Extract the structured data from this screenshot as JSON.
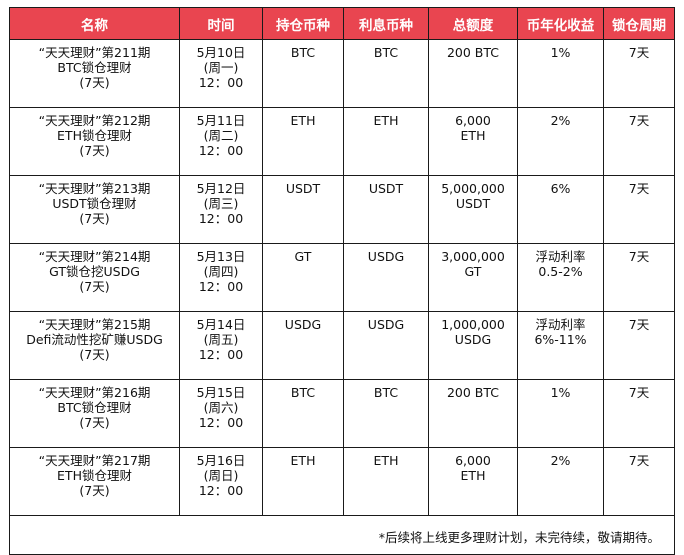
{
  "headers": [
    "名称",
    "时间",
    "持仓币种",
    "利息币种",
    "总额度",
    "币年化收益",
    "锁仓周期"
  ],
  "rows": [
    {
      "name": [
        "“天天理财”第211期",
        "BTC锁仓理财",
        "(7天)"
      ],
      "time": [
        "5月10日",
        "(周一)",
        "12：00"
      ],
      "coin": "BTC",
      "interest": "BTC",
      "total": [
        "200 BTC"
      ],
      "apy": [
        "1%"
      ],
      "lock": "7天"
    },
    {
      "name": [
        "“天天理财”第212期",
        "ETH锁仓理财",
        "(7天)"
      ],
      "time": [
        "5月11日",
        "(周二)",
        "12：00"
      ],
      "coin": "ETH",
      "interest": "ETH",
      "total": [
        "6,000",
        "ETH"
      ],
      "apy": [
        "2%"
      ],
      "lock": "7天"
    },
    {
      "name": [
        "“天天理财”第213期",
        "USDT锁仓理财",
        "(7天)"
      ],
      "time": [
        "5月12日",
        "(周三)",
        "12：00"
      ],
      "coin": "USDT",
      "interest": "USDT",
      "total": [
        "5,000,000",
        "USDT"
      ],
      "apy": [
        "6%"
      ],
      "lock": "7天"
    },
    {
      "name": [
        "“天天理财”第214期",
        "GT锁仓挖USDG",
        "(7天)"
      ],
      "time": [
        "5月13日",
        "(周四)",
        "12：00"
      ],
      "coin": "GT",
      "interest": "USDG",
      "total": [
        "3,000,000",
        "GT"
      ],
      "apy": [
        "浮动利率",
        "0.5-2%"
      ],
      "lock": "7天"
    },
    {
      "name": [
        "“天天理财”第215期",
        "Defi流动性挖矿赚USDG",
        "(7天)"
      ],
      "time": [
        "5月14日",
        "(周五)",
        "12：00"
      ],
      "coin": "USDG",
      "interest": "USDG",
      "total": [
        "1,000,000",
        "USDG"
      ],
      "apy": [
        "浮动利率",
        "6%-11%"
      ],
      "lock": "7天"
    },
    {
      "name": [
        "“天天理财”第216期",
        "BTC锁仓理财",
        "(7天)"
      ],
      "time": [
        "5月15日",
        "(周六)",
        "12：00"
      ],
      "coin": "BTC",
      "interest": "BTC",
      "total": [
        "200 BTC"
      ],
      "apy": [
        "1%"
      ],
      "lock": "7天"
    },
    {
      "name": [
        "“天天理财”第217期",
        "ETH锁仓理财",
        "(7天)"
      ],
      "time": [
        "5月16日",
        "(周日)",
        "12：00"
      ],
      "coin": "ETH",
      "interest": "ETH",
      "total": [
        "6,000",
        "ETH"
      ],
      "apy": [
        "2%"
      ],
      "lock": "7天"
    }
  ],
  "footnote": "*后续将上线更多理财计划，未完待续，敬请期待。",
  "colors": {
    "header_bg": "#e94550",
    "header_text": "#ffffff",
    "border": "#1a1a1a"
  }
}
